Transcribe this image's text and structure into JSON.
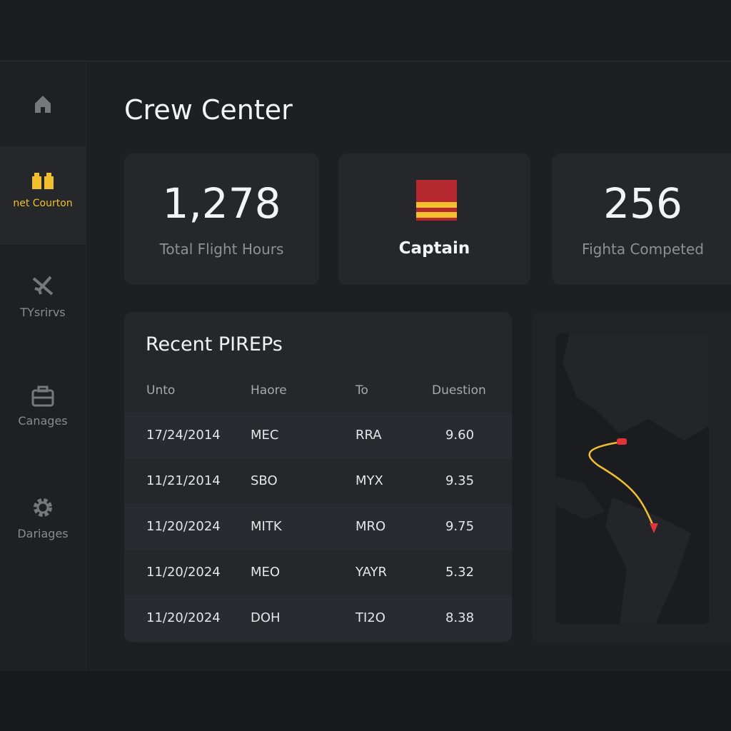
{
  "sidebar": {
    "items": [
      {
        "label": "net Courton"
      },
      {
        "label": "TYsrirvs"
      },
      {
        "label": "Canages"
      },
      {
        "label": "Dariages"
      }
    ]
  },
  "header": {
    "title": "Crew Center"
  },
  "stats": [
    {
      "value": "1,278",
      "label": "Total Flight Hours"
    },
    {
      "label": "Captain"
    },
    {
      "value": "256",
      "label": "Fighta Competed"
    }
  ],
  "table": {
    "title": "Recent PIREPs",
    "columns": [
      "Unto",
      "Haore",
      "To",
      "Duestion"
    ],
    "rows": [
      [
        "17/24/2014",
        "MEC",
        "RRA",
        "9.60"
      ],
      [
        "11/21/2014",
        "SBO",
        "MYX",
        "9.35"
      ],
      [
        "11/20/2024",
        "MITK",
        "MRO",
        "9.75"
      ],
      [
        "11/20/2024",
        "MEO",
        "YAYR",
        "5.32"
      ],
      [
        "11/20/2024",
        "DOH",
        "TI2O",
        "8.38"
      ]
    ]
  }
}
